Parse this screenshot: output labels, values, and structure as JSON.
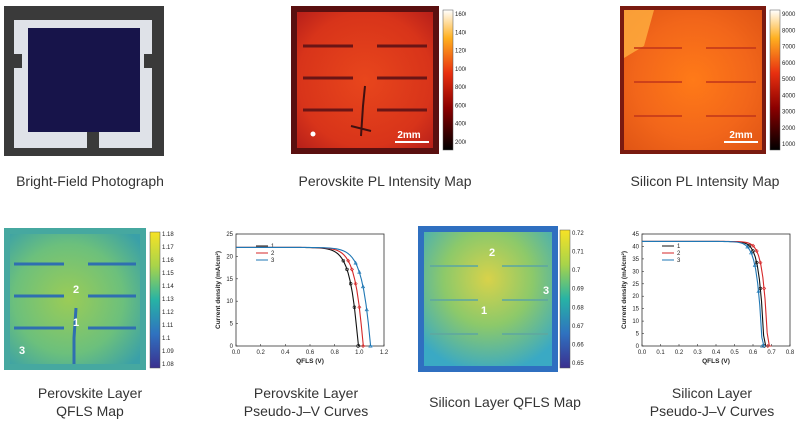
{
  "panels": {
    "bright_field": {
      "caption": "Bright-Field Photograph"
    },
    "perovskite_pl": {
      "caption": "Perovskite PL Intensity Map",
      "scalebar": "2mm",
      "colorbar_ticks": [
        "16000",
        "14000",
        "12000",
        "10000",
        "8000",
        "6000",
        "4000",
        "2000"
      ]
    },
    "silicon_pl": {
      "caption": "Silicon PL Intensity Map",
      "scalebar": "2mm",
      "colorbar_ticks": [
        "9000",
        "8000",
        "7000",
        "6000",
        "5000",
        "4000",
        "3000",
        "2000",
        "1000"
      ]
    },
    "perovskite_qfls": {
      "caption_line1": "Perovskite Layer",
      "caption_line2": "QFLS Map",
      "points": [
        "1",
        "2",
        "3"
      ],
      "colorbar_ticks": [
        "1.18",
        "1.17",
        "1.16",
        "1.15",
        "1.14",
        "1.13",
        "1.12",
        "1.11",
        "1.1",
        "1.09",
        "1.08"
      ]
    },
    "perovskite_jv": {
      "caption_line1": "Perovskite Layer",
      "caption_line2": "Pseudo-J–V Curves"
    },
    "silicon_qfls": {
      "caption": "Silicon Layer QFLS Map",
      "points": [
        "1",
        "2",
        "3"
      ],
      "colorbar_ticks": [
        "0.72",
        "0.71",
        "0.7",
        "0.69",
        "0.68",
        "0.67",
        "0.66",
        "0.65"
      ]
    },
    "silicon_jv": {
      "caption_line1": "Silicon Layer",
      "caption_line2": "Pseudo-J–V Curves"
    }
  },
  "chart_data": [
    {
      "type": "line",
      "xlabel": "QFLS (V)",
      "ylabel": "Current density (mA/cm²)",
      "xlim": [
        0,
        1.2
      ],
      "ylim": [
        0,
        25
      ],
      "xticks": [
        "0.0",
        "0.2",
        "0.4",
        "0.6",
        "0.8",
        "1.0",
        "1.2"
      ],
      "yticks": [
        "0",
        "5",
        "10",
        "15",
        "20",
        "25"
      ],
      "series": [
        {
          "name": "1",
          "color": "#111111",
          "jsc": 22,
          "voc": 0.99,
          "m": 0.06,
          "marker": "circle"
        },
        {
          "name": "2",
          "color": "#d62728",
          "jsc": 22,
          "voc": 1.03,
          "m": 0.06,
          "marker": "diamond"
        },
        {
          "name": "3",
          "color": "#1f77b4",
          "jsc": 22,
          "voc": 1.09,
          "m": 0.065,
          "marker": "triangle"
        }
      ]
    },
    {
      "type": "line",
      "xlabel": "QFLS (V)",
      "ylabel": "Current density (mA/cm²)",
      "xlim": [
        0,
        0.8
      ],
      "ylim": [
        0,
        45
      ],
      "xticks": [
        "0.0",
        "0.1",
        "0.2",
        "0.3",
        "0.4",
        "0.5",
        "0.6",
        "0.7",
        "0.8"
      ],
      "yticks": [
        "0",
        "5",
        "10",
        "15",
        "20",
        "25",
        "30",
        "35",
        "40",
        "45"
      ],
      "series": [
        {
          "name": "1",
          "color": "#111111",
          "jsc": 42,
          "voc": 0.66,
          "m": 0.025,
          "marker": "circle"
        },
        {
          "name": "2",
          "color": "#d62728",
          "jsc": 42,
          "voc": 0.68,
          "m": 0.025,
          "marker": "diamond"
        },
        {
          "name": "3",
          "color": "#1f77b4",
          "jsc": 42,
          "voc": 0.65,
          "m": 0.027,
          "marker": "triangle"
        }
      ]
    }
  ]
}
